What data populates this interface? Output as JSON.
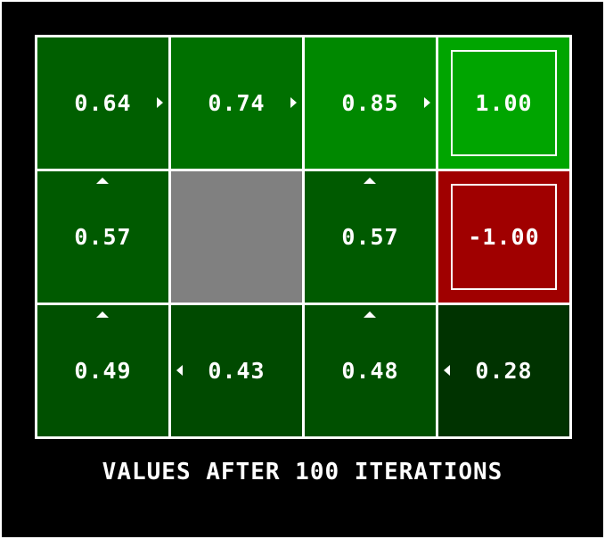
{
  "grid": {
    "cells": [
      {
        "row": 0,
        "col": 0,
        "value": "0.64",
        "policy": "right",
        "color": "#005f00"
      },
      {
        "row": 0,
        "col": 1,
        "value": "0.74",
        "policy": "right",
        "color": "#007000"
      },
      {
        "row": 0,
        "col": 2,
        "value": "0.85",
        "policy": "right",
        "color": "#008800"
      },
      {
        "row": 0,
        "col": 3,
        "value": "1.00",
        "terminal": true,
        "color": "#00a500"
      },
      {
        "row": 1,
        "col": 0,
        "value": "0.57",
        "policy": "up",
        "color": "#005a00"
      },
      {
        "row": 1,
        "col": 1,
        "wall": true,
        "color": "#808080"
      },
      {
        "row": 1,
        "col": 2,
        "value": "0.57",
        "policy": "up",
        "color": "#005a00"
      },
      {
        "row": 1,
        "col": 3,
        "value": "-1.00",
        "terminal": true,
        "color": "#a00000"
      },
      {
        "row": 2,
        "col": 0,
        "value": "0.49",
        "policy": "up",
        "color": "#005000"
      },
      {
        "row": 2,
        "col": 1,
        "value": "0.43",
        "policy": "left",
        "color": "#004a00"
      },
      {
        "row": 2,
        "col": 2,
        "value": "0.48",
        "policy": "left_up",
        "policy_shown": "up",
        "color": "#005000"
      },
      {
        "row": 2,
        "col": 3,
        "value": "0.28",
        "policy": "left",
        "color": "#003300"
      }
    ]
  },
  "caption": "VALUES AFTER 100 ITERATIONS"
}
